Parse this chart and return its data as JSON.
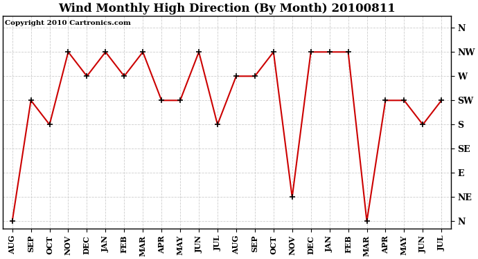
{
  "title": "Wind Monthly High Direction (By Month) 20100811",
  "copyright": "Copyright 2010 Cartronics.com",
  "months": [
    "AUG",
    "SEP",
    "OCT",
    "NOV",
    "DEC",
    "JAN",
    "FEB",
    "MAR",
    "APR",
    "MAY",
    "JUN",
    "JUL",
    "AUG",
    "SEP",
    "OCT",
    "NOV",
    "DEC",
    "JAN",
    "FEB",
    "MAR",
    "APR",
    "MAY",
    "JUN",
    "JUL"
  ],
  "ytick_labels": [
    "N",
    "NE",
    "E",
    "SE",
    "S",
    "SW",
    "W",
    "NW",
    "N"
  ],
  "ytick_positions": [
    0,
    1,
    2,
    3,
    4,
    5,
    6,
    7,
    8
  ],
  "values": [
    0,
    5,
    4,
    7,
    6,
    7,
    6,
    7,
    5,
    5,
    7,
    4,
    6,
    6,
    7,
    1,
    7,
    7,
    7,
    0,
    5,
    5,
    4,
    5
  ],
  "line_color": "#cc0000",
  "bg_color": "#ffffff",
  "grid_color": "#cccccc",
  "title_fontsize": 12,
  "copyright_fontsize": 7.5,
  "tick_fontsize": 8,
  "ytick_fontsize": 9
}
